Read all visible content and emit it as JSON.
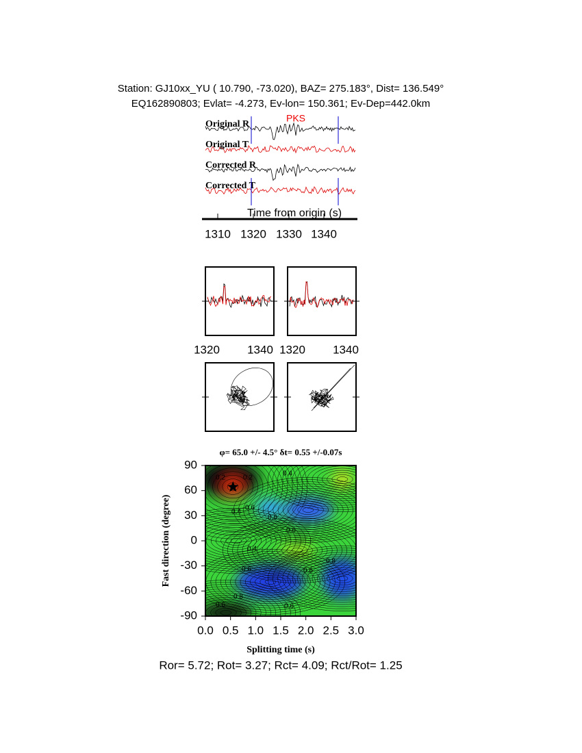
{
  "header": {
    "line1": "Station: GJ10xx_YU (  10.790,  -73.020), BAZ=  275.183°, Dist=  136.549°",
    "line2": "EQ162890803; Evlat=  -4.273, Ev-lon= 150.361; Ev-Dep=442.0km"
  },
  "traces": {
    "labels": [
      "Original R",
      "Original T",
      "Corrected R",
      "Corrected T"
    ],
    "phase": "PKS",
    "xlabel": "Time from origin (s)",
    "xticks": [
      "1310",
      "1320",
      "1330",
      "1340"
    ]
  },
  "windows": {
    "left_xticks": [
      "1320",
      "1340"
    ],
    "right_xticks": [
      "1320",
      "1340"
    ]
  },
  "grid": {
    "title": "φ= 65.0 +/- 4.5° δt= 0.55 +/-0.07s",
    "ylabel": "Fast direction (degree)",
    "xlabel": "Splitting time (s)",
    "yticks": [
      "90",
      "60",
      "30",
      "0",
      "-30",
      "-60",
      "-90"
    ],
    "xticks": [
      "0.0",
      "0.5",
      "1.0",
      "1.5",
      "2.0",
      "2.5",
      "3.0"
    ],
    "contour_labels": [
      "0.2",
      "0.2",
      "0.4",
      "0.4",
      "0.6",
      "0.6",
      "0.6",
      "0.4",
      "0.6",
      "0.6",
      "0.8",
      "0.8",
      "0.6",
      "0.6"
    ]
  },
  "footer": "Ror= 5.72; Rot= 3.27; Rct= 4.09; Rct/Rot= 1.25"
}
